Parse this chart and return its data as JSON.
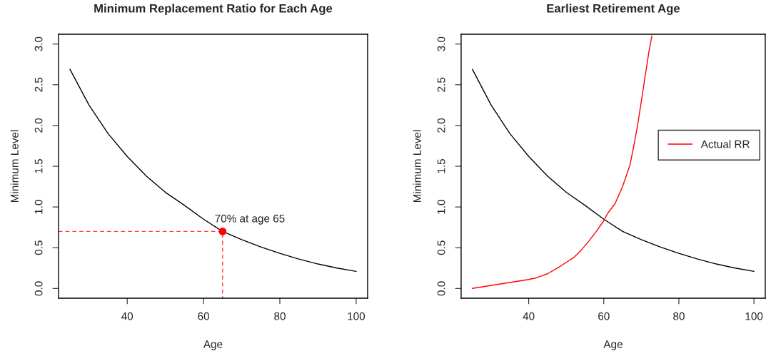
{
  "chart_data": [
    {
      "type": "line",
      "title": "Minimum Replacement Ratio for Each Age",
      "xlabel": "Age",
      "ylabel": "Minimum Level",
      "xlim": [
        22,
        103
      ],
      "ylim": [
        -0.12,
        3.12
      ],
      "xticks": [
        40,
        60,
        80,
        100
      ],
      "yticks": [
        {
          "value": 0,
          "label": "0.0"
        },
        {
          "value": 0.5,
          "label": "0.5"
        },
        {
          "value": 1,
          "label": "1.0"
        },
        {
          "value": 1.5,
          "label": "1.5"
        },
        {
          "value": 2,
          "label": "2.0"
        },
        {
          "value": 2.5,
          "label": "2.5"
        },
        {
          "value": 3,
          "label": "3.0"
        }
      ],
      "grid": false,
      "legend": false,
      "series": [
        {
          "color": "#000000",
          "x": [
            25,
            30,
            35,
            40,
            45,
            50,
            55,
            60,
            65,
            70,
            75,
            80,
            85,
            90,
            95,
            100
          ],
          "values": [
            2.69,
            2.25,
            1.9,
            1.62,
            1.38,
            1.18,
            1.02,
            0.85,
            0.7,
            0.6,
            0.51,
            0.43,
            0.36,
            0.3,
            0.25,
            0.21
          ]
        },
        {
          "color": "#ff4040",
          "line_style": "dashed",
          "x": [
            22,
            65,
            65
          ],
          "values": [
            0.7,
            0.7,
            -0.12
          ]
        },
        {
          "type": "scatter",
          "color": "#ff0000",
          "marker": "circle",
          "x": [
            65
          ],
          "values": [
            0.7
          ]
        }
      ],
      "annotations": [
        {
          "text": "70% at age 65",
          "x": 65,
          "y": 0.7
        }
      ]
    },
    {
      "type": "line",
      "title": "Earliest Retirement Age",
      "xlabel": "Age",
      "ylabel": "Minimum Level",
      "xlim": [
        22,
        103
      ],
      "ylim": [
        -0.12,
        3.12
      ],
      "xticks": [
        40,
        60,
        80,
        100
      ],
      "yticks": [
        {
          "value": 0,
          "label": "0.0"
        },
        {
          "value": 0.5,
          "label": "0.5"
        },
        {
          "value": 1,
          "label": "1.0"
        },
        {
          "value": 1.5,
          "label": "1.5"
        },
        {
          "value": 2,
          "label": "2.0"
        },
        {
          "value": 2.5,
          "label": "2.5"
        },
        {
          "value": 3,
          "label": "3.0"
        }
      ],
      "grid": false,
      "legend": "right",
      "series": [
        {
          "color": "#000000",
          "x": [
            25,
            30,
            35,
            40,
            45,
            50,
            55,
            60,
            65,
            70,
            75,
            80,
            85,
            90,
            95,
            100
          ],
          "values": [
            2.69,
            2.25,
            1.9,
            1.62,
            1.38,
            1.18,
            1.02,
            0.85,
            0.7,
            0.6,
            0.51,
            0.43,
            0.36,
            0.3,
            0.25,
            0.21
          ]
        },
        {
          "name": "Actual RR",
          "color": "#ff0000",
          "x": [
            25,
            40,
            42,
            45,
            48,
            50,
            52,
            54,
            56,
            58,
            60,
            61,
            63,
            65,
            67,
            68,
            69,
            70,
            71,
            72,
            72.8
          ],
          "values": [
            0,
            0.11,
            0.13,
            0.18,
            0.26,
            0.32,
            0.38,
            0.47,
            0.58,
            0.7,
            0.83,
            0.92,
            1.04,
            1.25,
            1.52,
            1.75,
            2.0,
            2.3,
            2.6,
            2.9,
            3.1
          ]
        }
      ]
    }
  ]
}
